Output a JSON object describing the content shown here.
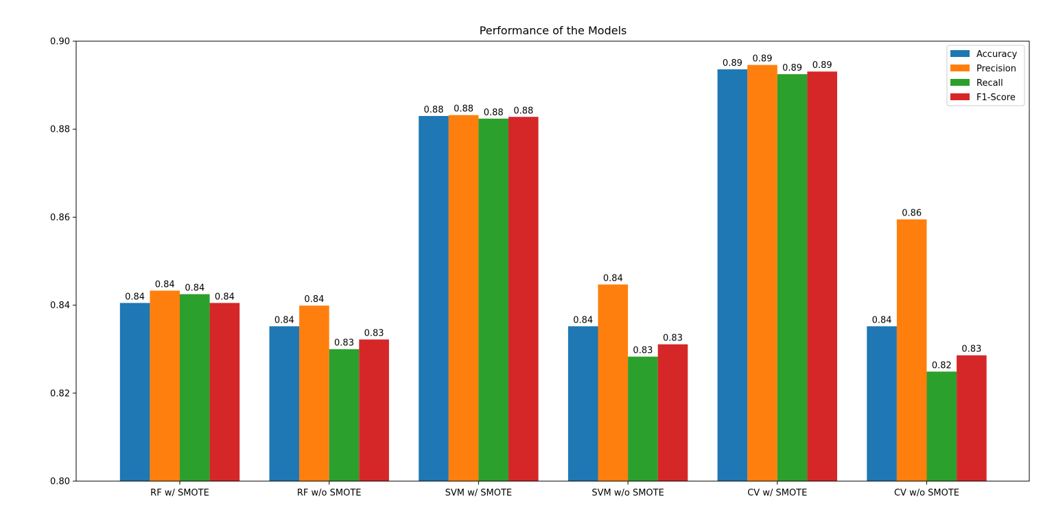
{
  "chart_data": {
    "type": "bar",
    "title": "Performance of the Models",
    "xlabel": "",
    "ylabel": "",
    "ylim": [
      0.8,
      0.9
    ],
    "yticks": [
      "0.80",
      "0.82",
      "0.84",
      "0.86",
      "0.88",
      "0.90"
    ],
    "legend_position": "top-right",
    "grid": false,
    "categories": [
      "RF w/ SMOTE",
      "RF w/o SMOTE",
      "SVM w/ SMOTE",
      "SVM w/o SMOTE",
      "CV w/ SMOTE",
      "CV w/o SMOTE"
    ],
    "series": [
      {
        "name": "Accuracy",
        "color": "#1f77b4",
        "values": [
          0.8405,
          0.8352,
          0.883,
          0.8352,
          0.8936,
          0.8352
        ],
        "labels": [
          "0.84",
          "0.84",
          "0.88",
          "0.84",
          "0.89",
          "0.84"
        ]
      },
      {
        "name": "Precision",
        "color": "#ff7f0e",
        "values": [
          0.8433,
          0.8399,
          0.8832,
          0.8447,
          0.8946,
          0.8595
        ],
        "labels": [
          "0.84",
          "0.84",
          "0.88",
          "0.84",
          "0.89",
          "0.86"
        ]
      },
      {
        "name": "Recall",
        "color": "#2ca02c",
        "values": [
          0.8425,
          0.83,
          0.8824,
          0.8283,
          0.8925,
          0.8249
        ],
        "labels": [
          "0.84",
          "0.83",
          "0.88",
          "0.83",
          "0.89",
          "0.82"
        ]
      },
      {
        "name": "F1-Score",
        "color": "#d62728",
        "values": [
          0.8405,
          0.8322,
          0.8828,
          0.8311,
          0.8931,
          0.8286
        ],
        "labels": [
          "0.84",
          "0.83",
          "0.88",
          "0.83",
          "0.89",
          "0.83"
        ]
      }
    ]
  }
}
